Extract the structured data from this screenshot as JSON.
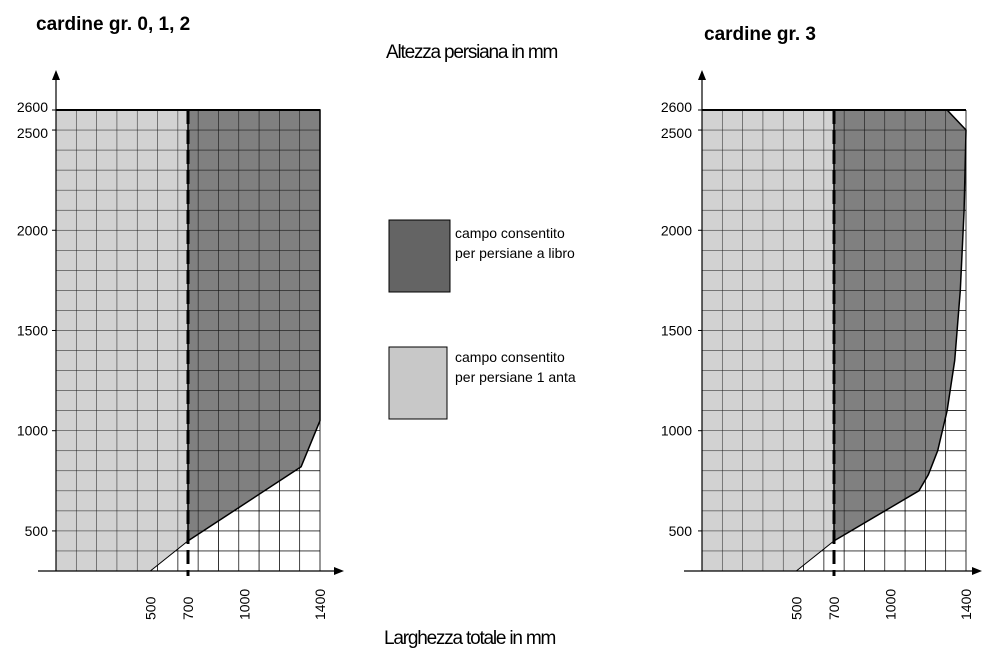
{
  "chart_data": [
    {
      "type": "area",
      "title": "cardine gr. 0, 1, 2",
      "x_ticks": [
        500,
        700,
        1000,
        1400
      ],
      "y_ticks": [
        500,
        1000,
        1500,
        2000,
        2500,
        2600
      ],
      "xlim": [
        0,
        1450
      ],
      "ylim": [
        300,
        2850
      ],
      "grid": true,
      "vline_dashed": 700,
      "series": [
        {
          "name": "campo consentito per persiane 1 anta",
          "color": "#c8c8c8",
          "polygon": [
            [
              0,
              300
            ],
            [
              500,
              300
            ],
            [
              700,
              450
            ],
            [
              700,
              2600
            ],
            [
              0,
              2600
            ]
          ]
        },
        {
          "name": "campo consentito per persiane a libro",
          "color": "#646464",
          "polygon": [
            [
              700,
              450
            ],
            [
              1300,
              820
            ],
            [
              1400,
              1050
            ],
            [
              1400,
              2600
            ],
            [
              700,
              2600
            ]
          ]
        }
      ]
    },
    {
      "type": "area",
      "title": "cardine gr. 3",
      "x_ticks": [
        500,
        700,
        1000,
        1400
      ],
      "y_ticks": [
        500,
        1000,
        1500,
        2000,
        2500,
        2600
      ],
      "xlim": [
        0,
        1450
      ],
      "ylim": [
        300,
        2850
      ],
      "grid": true,
      "vline_dashed": 700,
      "series": [
        {
          "name": "campo consentito per persiane 1 anta",
          "color": "#c8c8c8",
          "polygon": [
            [
              0,
              300
            ],
            [
              500,
              300
            ],
            [
              700,
              450
            ],
            [
              700,
              2600
            ],
            [
              0,
              2600
            ]
          ]
        },
        {
          "name": "campo consentito per persiane a libro",
          "color": "#646464",
          "polygon": [
            [
              700,
              450
            ],
            [
              1150,
              700
            ],
            [
              1200,
              780
            ],
            [
              1250,
              900
            ],
            [
              1300,
              1100
            ],
            [
              1340,
              1350
            ],
            [
              1370,
              1700
            ],
            [
              1390,
              2100
            ],
            [
              1400,
              2500
            ],
            [
              1300,
              2600
            ],
            [
              700,
              2600
            ]
          ]
        }
      ]
    }
  ],
  "labels": {
    "ylabel": "Altezza persiana in mm",
    "xlabel": "Larghezza totale in mm"
  },
  "legend": [
    {
      "label_line1": "campo  consentito",
      "label_line2": "per persiane a libro",
      "color": "#646464"
    },
    {
      "label_line1": "campo  consentito",
      "label_line2": "per persiane 1 anta",
      "color": "#c8c8c8"
    }
  ]
}
